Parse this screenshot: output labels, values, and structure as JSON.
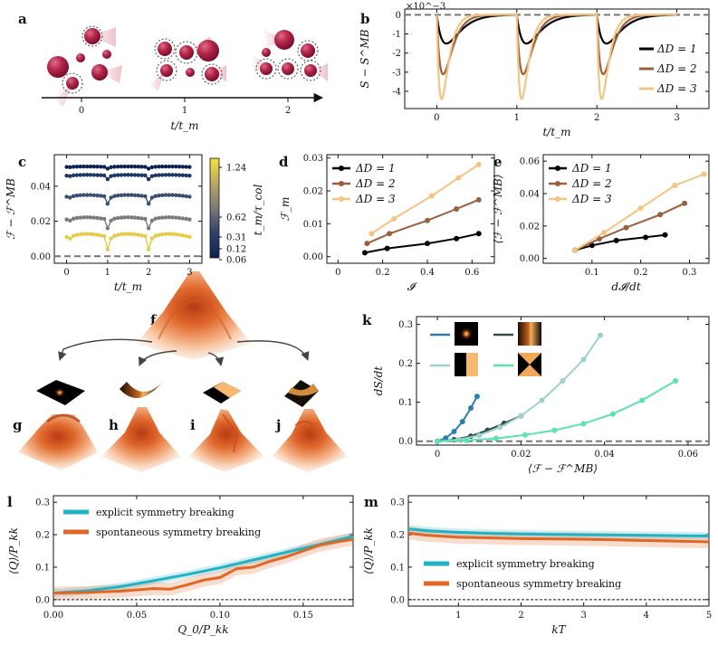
{
  "labels": {
    "a": "a",
    "b": "b",
    "c": "c",
    "d": "d",
    "e": "e",
    "f": "f",
    "g": "g",
    "h": "h",
    "i": "i",
    "j": "j",
    "k": "k",
    "l": "l",
    "m": "m"
  },
  "panel_a": {
    "ticks": [
      "0",
      "1",
      "2"
    ],
    "xlabel": "t/t_m"
  },
  "chart_data": [
    {
      "id": "b",
      "type": "line",
      "xlabel": "t/t_m",
      "ylabel": "S − S^MB",
      "multiplier": "×10^−3",
      "xlim": [
        -0.4,
        3.4
      ],
      "ylim": [
        -4.9,
        0.3
      ],
      "xticks": [
        0,
        1,
        2,
        3
      ],
      "yticks": [
        0,
        -1,
        -2,
        -3,
        -4
      ],
      "series": [
        {
          "name": "ΔD = 1",
          "color": "#000000",
          "dip_min": -1.5,
          "tau": 0.12
        },
        {
          "name": "ΔD = 2",
          "color": "#9a5f3f",
          "dip_min": -3.1,
          "tau": 0.08
        },
        {
          "name": "ΔD = 3",
          "color": "#f3c482",
          "dip_min": -4.4,
          "tau": 0.06
        }
      ],
      "reference_line": 0
    },
    {
      "id": "c",
      "type": "scatter-line",
      "xlabel": "t/t_m",
      "ylabel": "ℱ − ℱ^MB",
      "xlim": [
        -0.3,
        3.3
      ],
      "ylim": [
        -0.004,
        0.058
      ],
      "xticks": [
        0,
        1,
        2,
        3
      ],
      "yticks": [
        0.0,
        0.02,
        0.04
      ],
      "colorbar": {
        "label": "t_m/τ_col",
        "ticks": [
          "1.24",
          "0.62",
          "0.31",
          "0.12",
          "0.06"
        ]
      },
      "series": [
        {
          "name": "0.06",
          "color": "#0d2152",
          "base": 0.051,
          "dip": 0.001
        },
        {
          "name": "0.12",
          "color": "#1e3566",
          "base": 0.046,
          "dip": 0.002
        },
        {
          "name": "0.31",
          "color": "#3a4c6f",
          "base": 0.034,
          "dip": 0.004
        },
        {
          "name": "0.62",
          "color": "#7a7a78",
          "base": 0.021,
          "dip": 0.005
        },
        {
          "name": "1.24",
          "color": "#e3cc4a",
          "base": 0.011,
          "dip": 0.007
        }
      ],
      "reference_line": 0
    },
    {
      "id": "d",
      "type": "line",
      "xlabel": "𝓘",
      "ylabel": "ℱ_m",
      "xlim": [
        -0.05,
        0.7
      ],
      "ylim": [
        -0.002,
        0.031
      ],
      "xticks": [
        0.0,
        0.2,
        0.4,
        0.6
      ],
      "yticks": [
        0.0,
        0.01,
        0.02,
        0.03
      ],
      "series": [
        {
          "name": "ΔD = 1",
          "color": "#000000",
          "x": [
            0.12,
            0.22,
            0.4,
            0.53,
            0.63
          ],
          "y": [
            0.0012,
            0.0025,
            0.004,
            0.0055,
            0.007
          ]
        },
        {
          "name": "ΔD = 2",
          "color": "#9a5f3f",
          "x": [
            0.13,
            0.23,
            0.4,
            0.53,
            0.63
          ],
          "y": [
            0.004,
            0.007,
            0.011,
            0.0145,
            0.0173
          ]
        },
        {
          "name": "ΔD = 3",
          "color": "#f3c482",
          "x": [
            0.15,
            0.25,
            0.42,
            0.54,
            0.63
          ],
          "y": [
            0.007,
            0.0115,
            0.0185,
            0.024,
            0.028
          ]
        }
      ]
    },
    {
      "id": "e",
      "type": "line",
      "xlabel": "d𝓘/dt",
      "ylabel": "⟨ℱ − ℱ^MB⟩",
      "xlim": [
        0.0,
        0.34
      ],
      "ylim": [
        -0.003,
        0.064
      ],
      "xticks": [
        0.1,
        0.2,
        0.3
      ],
      "yticks": [
        0.0,
        0.02,
        0.04,
        0.06
      ],
      "series": [
        {
          "name": "ΔD = 1",
          "color": "#000000",
          "x": [
            0.065,
            0.1,
            0.15,
            0.21,
            0.25
          ],
          "y": [
            0.005,
            0.008,
            0.011,
            0.013,
            0.0145
          ]
        },
        {
          "name": "ΔD = 2",
          "color": "#9a5f3f",
          "x": [
            0.065,
            0.115,
            0.17,
            0.24,
            0.29
          ],
          "y": [
            0.005,
            0.012,
            0.019,
            0.027,
            0.034
          ]
        },
        {
          "name": "ΔD = 3",
          "color": "#f3c482",
          "x": [
            0.065,
            0.125,
            0.2,
            0.27,
            0.33
          ],
          "y": [
            0.005,
            0.016,
            0.031,
            0.045,
            0.052
          ]
        }
      ]
    },
    {
      "id": "k",
      "type": "scatter-line",
      "xlabel": "⟨ℱ − ℱ^MB⟩",
      "ylabel": "dS/dt",
      "xlim": [
        -0.005,
        0.065
      ],
      "ylim": [
        -0.01,
        0.32
      ],
      "xticks": [
        0.0,
        0.02,
        0.04,
        0.06
      ],
      "yticks": [
        0.0,
        0.1,
        0.2,
        0.3
      ],
      "series": [
        {
          "name": "localized peak",
          "color": "#2a7fb0",
          "x": [
            0,
            0.002,
            0.004,
            0.006,
            0.008,
            0.0095
          ],
          "y": [
            0,
            0.008,
            0.025,
            0.05,
            0.085,
            0.115
          ]
        },
        {
          "name": "single gradient",
          "color": "#2b4f4a",
          "x": [
            0,
            0.004,
            0.008,
            0.012,
            0.016,
            0.02
          ],
          "y": [
            0,
            0.004,
            0.013,
            0.028,
            0.046,
            0.065
          ]
        },
        {
          "name": "half-split",
          "color": "#9fd0d0",
          "x": [
            0,
            0.005,
            0.01,
            0.015,
            0.02,
            0.025,
            0.03,
            0.035,
            0.039
          ],
          "y": [
            0,
            0.004,
            0.015,
            0.036,
            0.065,
            0.105,
            0.155,
            0.21,
            0.272
          ]
        },
        {
          "name": "hourglass",
          "color": "#5be3ad",
          "x": [
            0,
            0.007,
            0.014,
            0.021,
            0.028,
            0.035,
            0.042,
            0.049,
            0.057
          ],
          "y": [
            0,
            0.002,
            0.007,
            0.016,
            0.028,
            0.045,
            0.07,
            0.105,
            0.155
          ]
        }
      ],
      "reference_line": 0
    },
    {
      "id": "l",
      "type": "area-line",
      "xlabel": "Q_0/P_kk",
      "ylabel": "⟨Q⟩/P_kk",
      "xlim": [
        0.0,
        0.18
      ],
      "ylim": [
        -0.02,
        0.32
      ],
      "xticks": [
        "0.00",
        "0.05",
        "0.10",
        "0.15"
      ],
      "yticks": [
        "0.0",
        "0.1",
        "0.2",
        "0.3"
      ],
      "legend": [
        "explicit symmetry breaking",
        "spontaneous symmetry breaking"
      ],
      "series": [
        {
          "name": "explicit symmetry breaking",
          "color": "#21b3c4",
          "x": [
            0.0,
            0.02,
            0.04,
            0.06,
            0.08,
            0.1,
            0.12,
            0.14,
            0.16,
            0.18
          ],
          "y": [
            0.02,
            0.027,
            0.04,
            0.058,
            0.077,
            0.098,
            0.122,
            0.146,
            0.17,
            0.195
          ]
        },
        {
          "name": "spontaneous symmetry breaking",
          "color": "#e06623",
          "x": [
            0.0,
            0.02,
            0.04,
            0.06,
            0.07,
            0.08,
            0.09,
            0.1,
            0.11,
            0.12,
            0.13,
            0.14,
            0.15,
            0.16,
            0.17,
            0.18
          ],
          "y": [
            0.02,
            0.022,
            0.026,
            0.034,
            0.032,
            0.045,
            0.06,
            0.068,
            0.095,
            0.1,
            0.118,
            0.132,
            0.15,
            0.168,
            0.178,
            0.186
          ]
        }
      ],
      "reference_line": 0
    },
    {
      "id": "m",
      "type": "area-line",
      "xlabel": "kT",
      "ylabel": "⟨Q⟩/P_kk",
      "xlim": [
        0.2,
        5.0
      ],
      "ylim": [
        -0.02,
        0.32
      ],
      "xticks": [
        "1",
        "2",
        "3",
        "4",
        "5"
      ],
      "yticks": [
        "0.0",
        "0.1",
        "0.2",
        "0.3"
      ],
      "legend": [
        "explicit symmetry breaking",
        "spontaneous symmetry breaking"
      ],
      "series": [
        {
          "name": "explicit symmetry breaking",
          "color": "#21b3c4",
          "x": [
            0.2,
            0.5,
            1,
            1.5,
            2,
            2.5,
            3,
            3.5,
            4,
            4.5,
            5
          ],
          "y": [
            0.218,
            0.212,
            0.207,
            0.204,
            0.202,
            0.201,
            0.2,
            0.199,
            0.198,
            0.197,
            0.196
          ]
        },
        {
          "name": "spontaneous symmetry breaking",
          "color": "#e06623",
          "x": [
            0.2,
            0.5,
            1,
            1.5,
            2,
            2.5,
            3,
            3.5,
            4,
            4.5,
            5
          ],
          "y": [
            0.205,
            0.198,
            0.192,
            0.19,
            0.188,
            0.187,
            0.186,
            0.184,
            0.182,
            0.18,
            0.178
          ]
        }
      ],
      "reference_line": 0
    }
  ]
}
